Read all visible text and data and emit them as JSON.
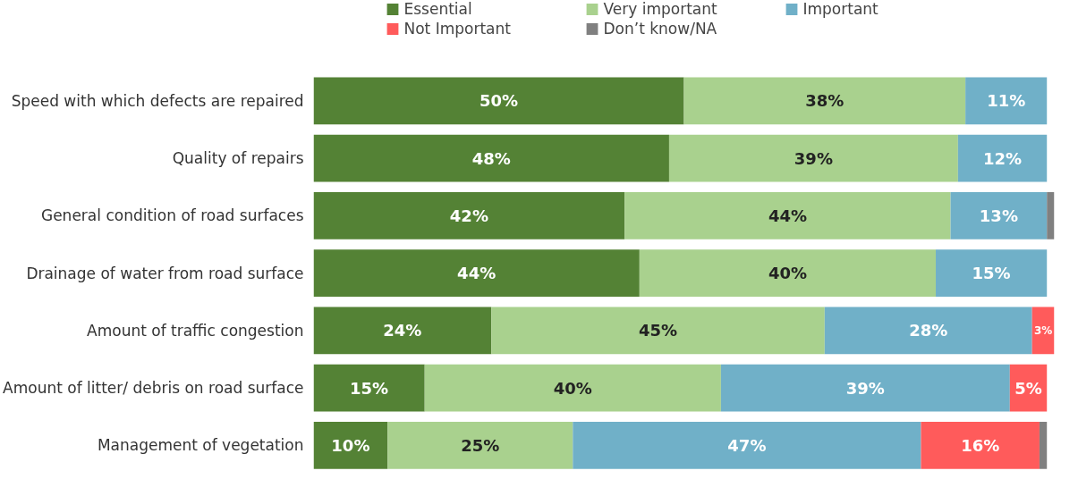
{
  "chart_data": {
    "type": "bar",
    "orientation": "horizontal",
    "stacked": true,
    "categories": [
      "Speed with which defects are repaired",
      "Quality of repairs",
      "General condition of road surfaces",
      "Drainage of water from road surface",
      "Amount of traffic congestion",
      "Amount of litter/ debris on road surface",
      "Management of vegetation"
    ],
    "xlim": [
      0,
      100
    ],
    "tick_labels": "y",
    "grid": false,
    "legend": "top",
    "series": [
      {
        "name": "Essential",
        "color": "#548235",
        "values": [
          50,
          48,
          42,
          44,
          24,
          15,
          10
        ],
        "value_labels": [
          "50%",
          "48%",
          "42%",
          "44%",
          "24%",
          "15%",
          "10%"
        ]
      },
      {
        "name": "Very important",
        "color": "#a9d18e",
        "values": [
          38,
          39,
          44,
          40,
          45,
          40,
          25
        ],
        "value_labels": [
          "38%",
          "39%",
          "44%",
          "40%",
          "45%",
          "40%",
          "25%"
        ]
      },
      {
        "name": "Important",
        "color": "#70b0c8",
        "values": [
          11,
          12,
          13,
          15,
          28,
          39,
          47
        ],
        "value_labels": [
          "11%",
          "12%",
          "13%",
          "15%",
          "28%",
          "39%",
          "47%"
        ]
      },
      {
        "name": "Not Important",
        "color": "#ff5b5b",
        "values": [
          0,
          0,
          0,
          0,
          3,
          5,
          16
        ],
        "value_labels": [
          null,
          null,
          null,
          null,
          "3%",
          "5%",
          "16%"
        ]
      },
      {
        "name": "Don’t know/NA",
        "color": "#808080",
        "values": [
          0,
          0,
          1,
          0,
          0,
          0,
          1
        ],
        "value_labels": [
          null,
          null,
          null,
          null,
          null,
          null,
          null
        ]
      }
    ]
  }
}
